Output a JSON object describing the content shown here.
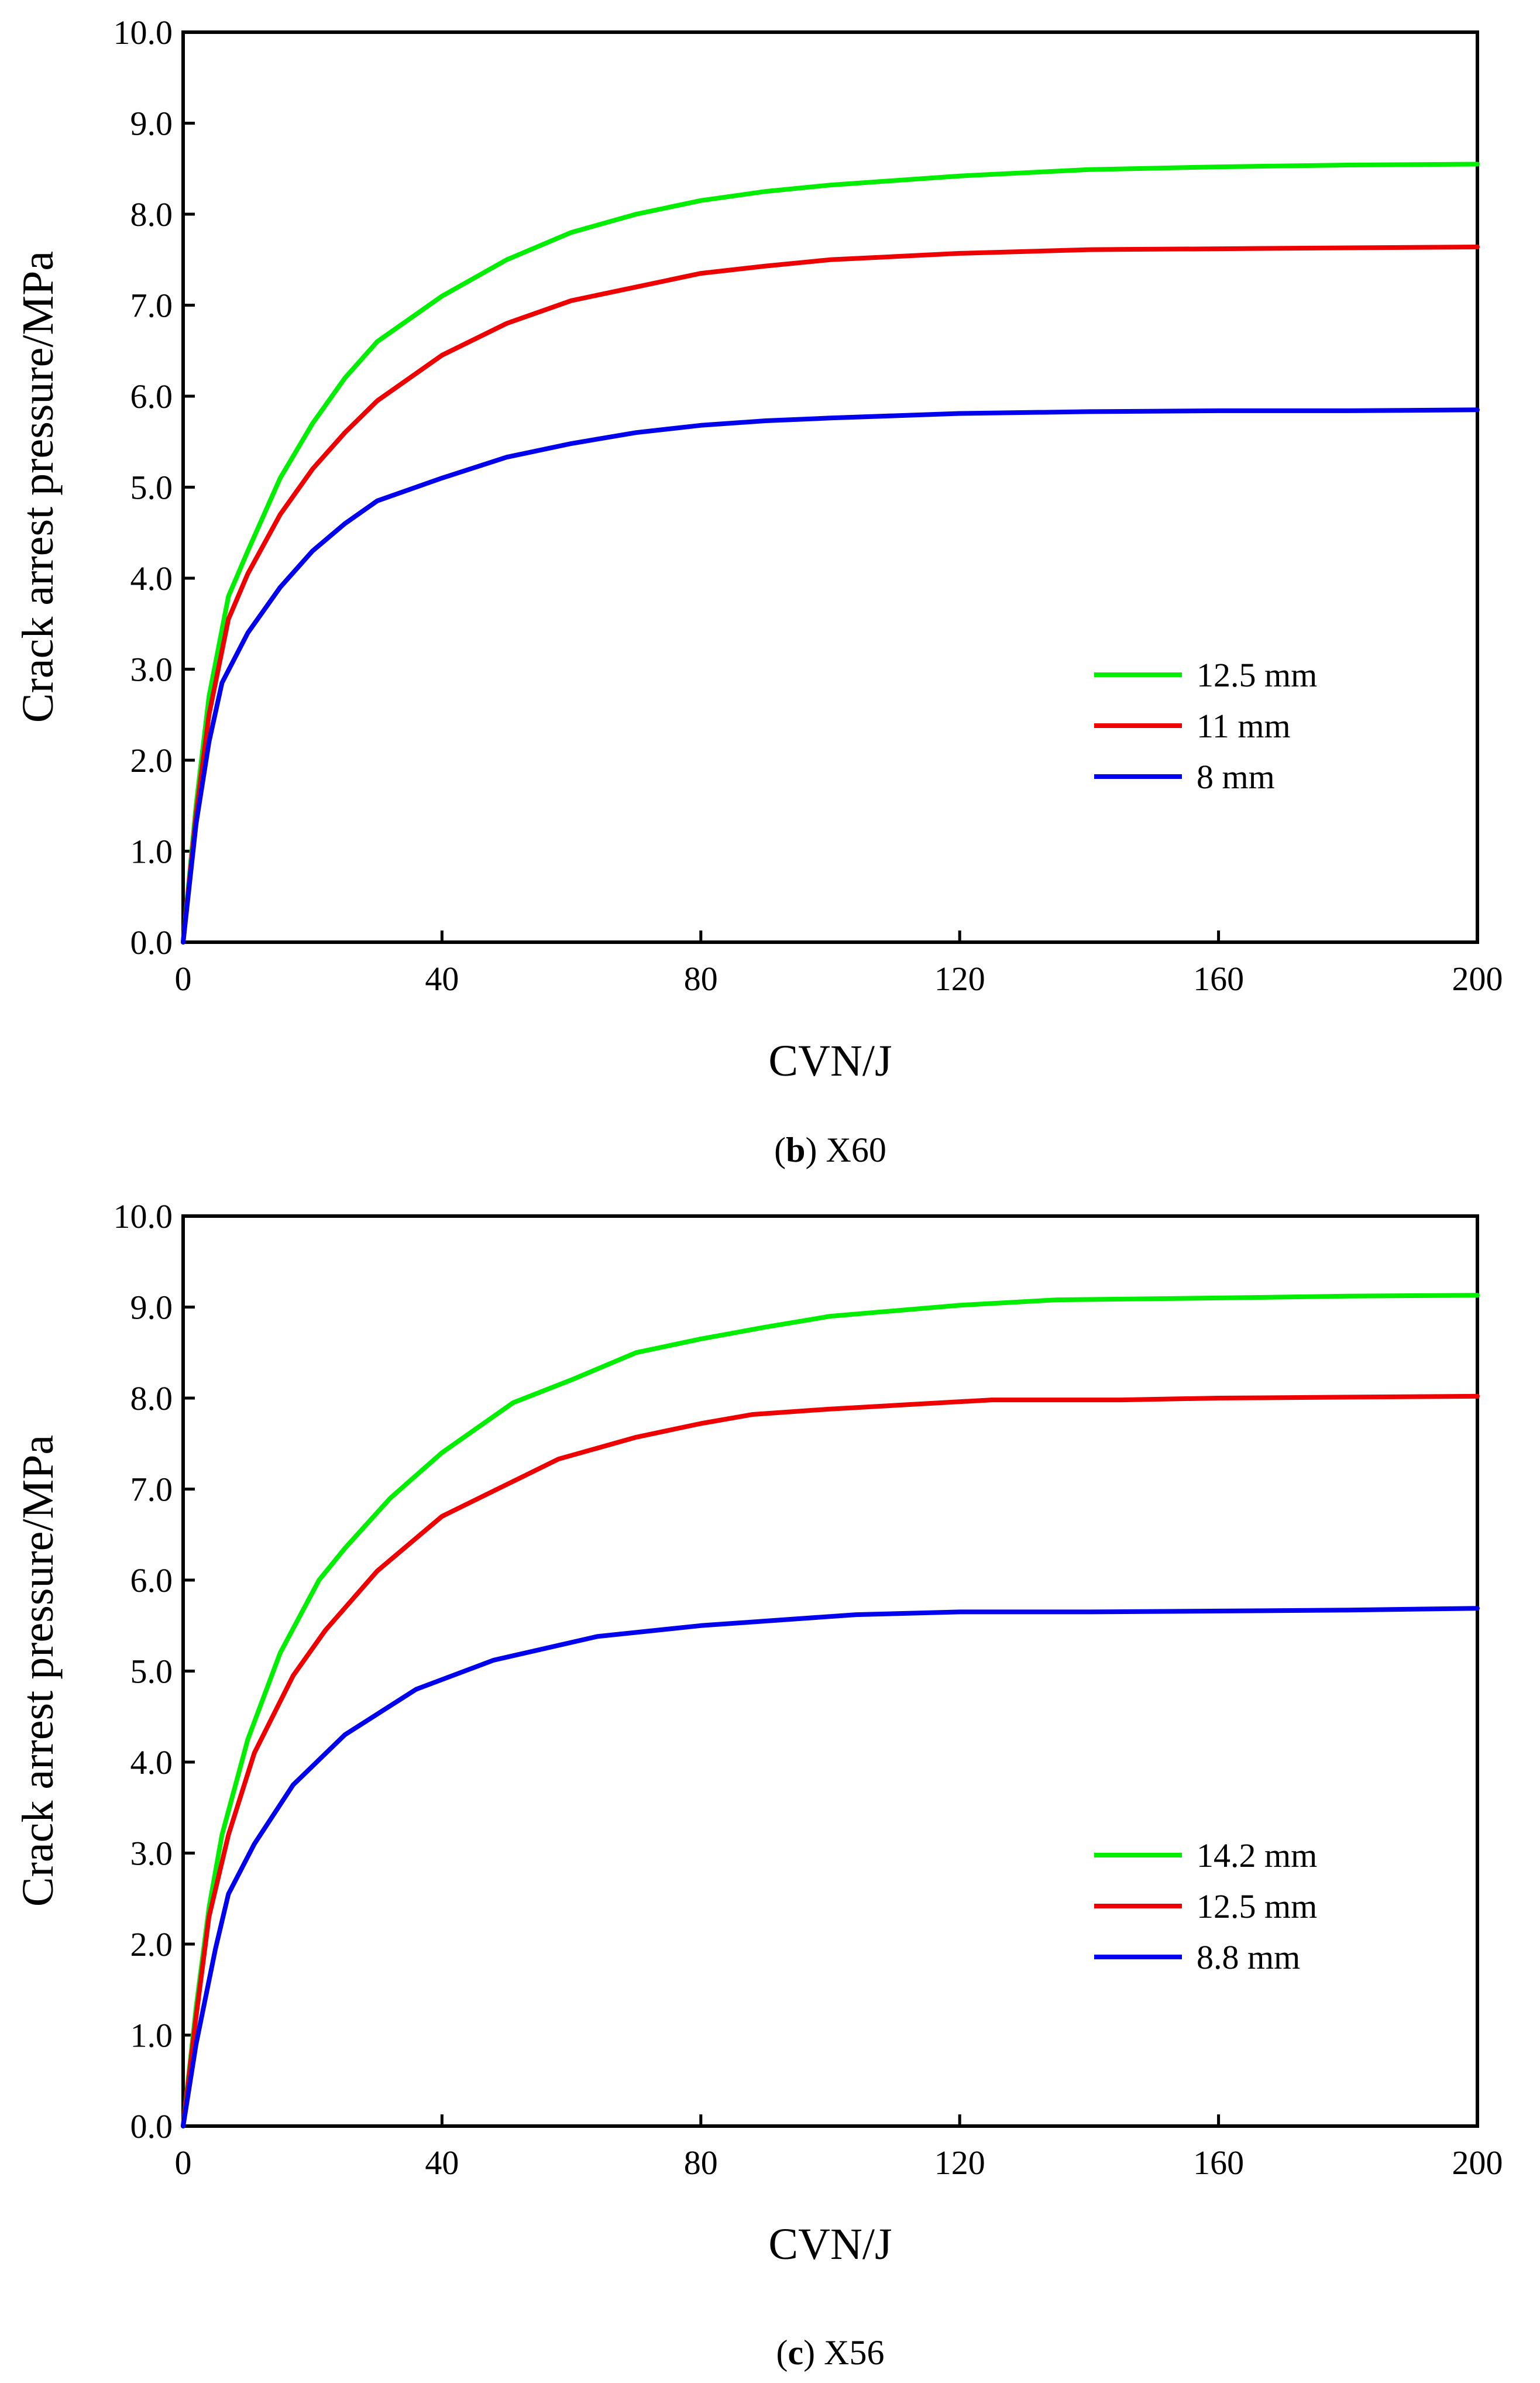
{
  "chart_data": [
    {
      "type": "line",
      "caption_letter": "b",
      "caption_text": " X60",
      "xlabel": "CVN/J",
      "ylabel": "Crack arrest pressure/MPa",
      "xlim": [
        0,
        200
      ],
      "ylim": [
        0,
        10
      ],
      "x_ticks": [
        0,
        40,
        80,
        120,
        160,
        200
      ],
      "x_tick_labels": [
        "0",
        "40",
        "80",
        "120",
        "160",
        "200"
      ],
      "y_ticks": [
        0,
        1,
        2,
        3,
        4,
        5,
        6,
        7,
        8,
        9,
        10
      ],
      "y_tick_labels": [
        "0.0",
        "1.0",
        "2.0",
        "3.0",
        "4.0",
        "5.0",
        "6.0",
        "7.0",
        "8.0",
        "9.0",
        "10.0"
      ],
      "grid": false,
      "legend_position": "lower-right",
      "series": [
        {
          "name": "12.5 mm",
          "color": "#00ee00",
          "x": [
            0,
            2,
            4,
            7,
            10,
            15,
            20,
            25,
            30,
            40,
            50,
            60,
            70,
            80,
            90,
            100,
            120,
            140,
            160,
            180,
            200
          ],
          "values": [
            0,
            1.5,
            2.7,
            3.8,
            4.3,
            5.1,
            5.7,
            6.2,
            6.6,
            7.1,
            7.5,
            7.8,
            8.0,
            8.15,
            8.25,
            8.32,
            8.42,
            8.49,
            8.52,
            8.54,
            8.55
          ]
        },
        {
          "name": "11 mm",
          "color": "#ee0000",
          "x": [
            0,
            2,
            4,
            7,
            10,
            15,
            20,
            25,
            30,
            40,
            50,
            60,
            70,
            80,
            90,
            100,
            120,
            140,
            160,
            180,
            200
          ],
          "values": [
            0,
            1.4,
            2.5,
            3.55,
            4.05,
            4.7,
            5.2,
            5.6,
            5.95,
            6.45,
            6.8,
            7.05,
            7.2,
            7.35,
            7.43,
            7.5,
            7.57,
            7.61,
            7.62,
            7.63,
            7.64
          ]
        },
        {
          "name": "8 mm",
          "color": "#0000ee",
          "x": [
            0,
            2,
            4,
            6,
            10,
            15,
            20,
            25,
            30,
            40,
            50,
            60,
            70,
            80,
            90,
            100,
            120,
            140,
            160,
            180,
            200
          ],
          "values": [
            0,
            1.3,
            2.2,
            2.85,
            3.4,
            3.9,
            4.3,
            4.6,
            4.85,
            5.1,
            5.33,
            5.48,
            5.6,
            5.68,
            5.73,
            5.76,
            5.81,
            5.83,
            5.84,
            5.84,
            5.85
          ]
        }
      ]
    },
    {
      "type": "line",
      "caption_letter": "c",
      "caption_text": " X56",
      "xlabel": "CVN/J",
      "ylabel": "Crack arrest pressure/MPa",
      "xlim": [
        0,
        200
      ],
      "ylim": [
        0,
        10
      ],
      "x_ticks": [
        0,
        40,
        80,
        120,
        160,
        200
      ],
      "x_tick_labels": [
        "0",
        "40",
        "80",
        "120",
        "160",
        "200"
      ],
      "y_ticks": [
        0,
        1,
        2,
        3,
        4,
        5,
        6,
        7,
        8,
        9,
        10
      ],
      "y_tick_labels": [
        "0.0",
        "1.0",
        "2.0",
        "3.0",
        "4.0",
        "5.0",
        "6.0",
        "7.0",
        "8.0",
        "9.0",
        "10.0"
      ],
      "grid": false,
      "legend_position": "lower-right",
      "series": [
        {
          "name": "14.2 mm",
          "color": "#00ee00",
          "x": [
            0,
            2,
            4,
            6,
            10,
            15,
            21,
            25,
            32,
            40,
            51,
            60,
            70,
            80,
            90,
            100,
            120,
            135,
            160,
            180,
            200
          ],
          "values": [
            0,
            1.3,
            2.4,
            3.2,
            4.25,
            5.2,
            6.0,
            6.35,
            6.9,
            7.4,
            7.95,
            8.2,
            8.5,
            8.65,
            8.78,
            8.9,
            9.02,
            9.08,
            9.1,
            9.12,
            9.13
          ]
        },
        {
          "name": "12.5 mm",
          "color": "#ee0000",
          "x": [
            0,
            2,
            4,
            7,
            11,
            17,
            22,
            30,
            40,
            50,
            58,
            70,
            80,
            88,
            100,
            125,
            145,
            160,
            180,
            200
          ],
          "values": [
            0,
            1.2,
            2.3,
            3.2,
            4.1,
            4.95,
            5.45,
            6.1,
            6.7,
            7.05,
            7.33,
            7.57,
            7.72,
            7.82,
            7.88,
            7.98,
            7.98,
            8.0,
            8.01,
            8.02
          ]
        },
        {
          "name": "8.8 mm",
          "color": "#0000ee",
          "x": [
            0,
            2,
            5,
            7,
            11,
            17,
            25,
            36,
            48,
            64,
            80,
            90,
            104,
            120,
            140,
            160,
            180,
            200
          ],
          "values": [
            0,
            0.9,
            1.95,
            2.55,
            3.1,
            3.75,
            4.3,
            4.8,
            5.12,
            5.38,
            5.5,
            5.55,
            5.62,
            5.65,
            5.65,
            5.66,
            5.67,
            5.69
          ]
        }
      ]
    }
  ]
}
